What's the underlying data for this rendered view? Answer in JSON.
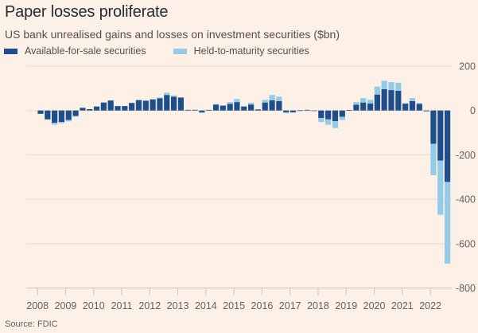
{
  "header": {
    "title": "Paper losses proliferate",
    "subtitle": "US bank unrealised gains and losses on investment securities ($bn)"
  },
  "legend": [
    {
      "label": "Available-for-sale securities",
      "color": "#1f4e8c"
    },
    {
      "label": "Held-to-maturity securities",
      "color": "#96cbe8"
    }
  ],
  "footer": {
    "source": "Source: FDIC"
  },
  "colors": {
    "background": "#fdf0e6",
    "afs": "#1f4e8c",
    "htm": "#96cbe8",
    "grid": "#e8dacd",
    "axis": "#cfc2b8"
  },
  "chart_data": {
    "type": "bar",
    "stacked": true,
    "title": "Paper losses proliferate",
    "subtitle": "US bank unrealised gains and losses on investment securities ($bn)",
    "xlabel": "",
    "ylabel": "",
    "ylim": [
      -800,
      200
    ],
    "yticks": [
      200,
      0,
      -200,
      -400,
      -600,
      -800
    ],
    "ytick_labels": [
      "200",
      "0",
      "-200",
      "-400",
      "-600",
      "-800"
    ],
    "xtick_labels": [
      "2008",
      "2009",
      "2010",
      "2011",
      "2012",
      "2013",
      "2014",
      "2015",
      "2016",
      "2017",
      "2018",
      "2019",
      "2020",
      "2021",
      "2022"
    ],
    "grid": true,
    "legend_position": "top-left",
    "y_axis_side": "right",
    "categories": [
      "2008Q1",
      "2008Q2",
      "2008Q3",
      "2008Q4",
      "2009Q1",
      "2009Q2",
      "2009Q3",
      "2009Q4",
      "2010Q1",
      "2010Q2",
      "2010Q3",
      "2010Q4",
      "2011Q1",
      "2011Q2",
      "2011Q3",
      "2011Q4",
      "2012Q1",
      "2012Q2",
      "2012Q3",
      "2012Q4",
      "2013Q1",
      "2013Q2",
      "2013Q3",
      "2013Q4",
      "2014Q1",
      "2014Q2",
      "2014Q3",
      "2014Q4",
      "2015Q1",
      "2015Q2",
      "2015Q3",
      "2015Q4",
      "2016Q1",
      "2016Q2",
      "2016Q3",
      "2016Q4",
      "2017Q1",
      "2017Q2",
      "2017Q3",
      "2017Q4",
      "2018Q1",
      "2018Q2",
      "2018Q3",
      "2018Q4",
      "2019Q1",
      "2019Q2",
      "2019Q3",
      "2019Q4",
      "2020Q1",
      "2020Q2",
      "2020Q3",
      "2020Q4",
      "2021Q1",
      "2021Q2",
      "2021Q3",
      "2021Q4",
      "2022Q1",
      "2022Q2",
      "2022Q3"
    ],
    "series": [
      {
        "name": "Available-for-sale securities",
        "values": [
          -15,
          -40,
          -55,
          -52,
          -43,
          -25,
          12,
          6,
          18,
          36,
          45,
          20,
          20,
          34,
          47,
          44,
          50,
          55,
          70,
          62,
          58,
          3,
          3,
          -8,
          3,
          27,
          22,
          30,
          38,
          18,
          27,
          5,
          36,
          46,
          42,
          -8,
          -8,
          1,
          3,
          -2,
          -34,
          -40,
          -48,
          -28,
          2,
          26,
          36,
          32,
          72,
          96,
          92,
          89,
          31,
          42,
          30,
          -3,
          -150,
          -226,
          -322
        ]
      },
      {
        "name": "Held-to-maturity securities",
        "values": [
          0,
          -2,
          -9,
          -6,
          -6,
          -3,
          0,
          0,
          0,
          0,
          0,
          0,
          0,
          0,
          1,
          1,
          2,
          4,
          10,
          6,
          2,
          0,
          0,
          -4,
          0,
          2,
          1,
          8,
          14,
          2,
          8,
          1,
          12,
          24,
          20,
          -4,
          -2,
          0,
          0,
          -1,
          -18,
          -24,
          -31,
          -15,
          0,
          12,
          20,
          16,
          36,
          38,
          36,
          36,
          2,
          14,
          4,
          -2,
          -142,
          -244,
          -368
        ]
      }
    ]
  }
}
